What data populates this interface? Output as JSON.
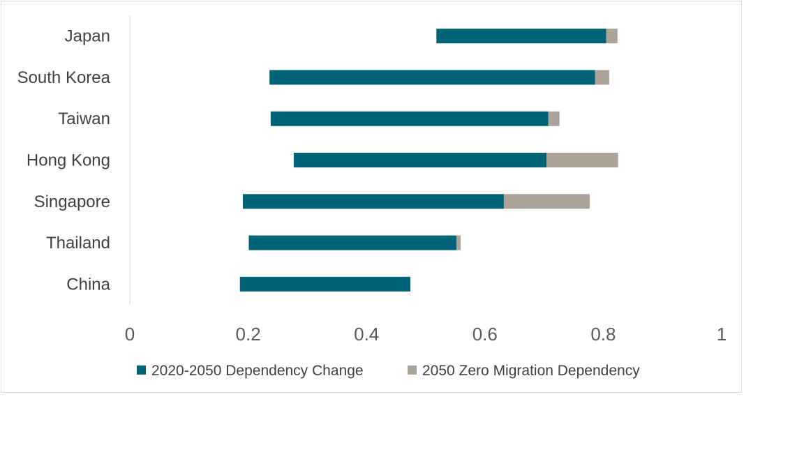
{
  "chart_data": {
    "type": "bar",
    "orientation": "horizontal",
    "stacked": true,
    "categories": [
      "Japan",
      "South Korea",
      "Taiwan",
      "Hong Kong",
      "Singapore",
      "Thailand",
      "China"
    ],
    "base_offset": [
      0.518,
      0.236,
      0.238,
      0.277,
      0.191,
      0.201,
      0.186
    ],
    "series": [
      {
        "name": "2020-2050 Dependency Change",
        "color": "#006478",
        "values": [
          0.287,
          0.55,
          0.469,
          0.427,
          0.441,
          0.351,
          0.288
        ]
      },
      {
        "name": "2050 Zero Migration Dependency",
        "color": "#aba298",
        "values": [
          0.019,
          0.024,
          0.019,
          0.121,
          0.145,
          0.007,
          0.0
        ]
      }
    ],
    "xlim": [
      0,
      1
    ],
    "xticks": [
      "0",
      "0.2",
      "0.4",
      "0.6",
      "0.8",
      "1"
    ],
    "xtick_values": [
      0,
      0.2,
      0.4,
      0.6,
      0.8,
      1
    ],
    "grid": false,
    "legend": "bottom"
  }
}
